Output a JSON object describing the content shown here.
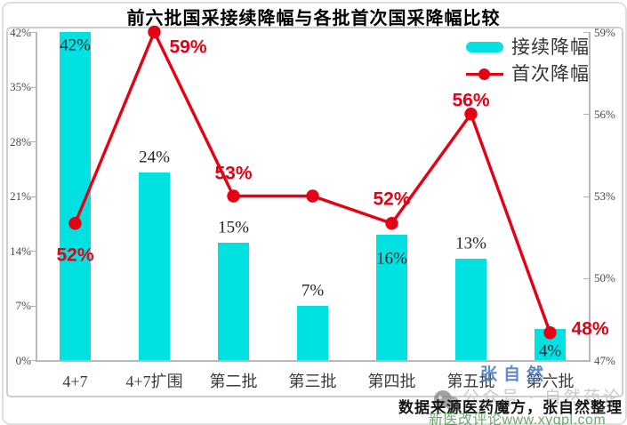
{
  "title": "前六批国采接续降幅与各批首次国采降幅比较",
  "legend": {
    "bar_label": "接续降幅",
    "line_label": "首次降幅"
  },
  "footer": {
    "source": "数据来源医药魔方，张自然整理"
  },
  "watermarks": {
    "blue": "张自然",
    "gray": "公众号 · 自然药论",
    "green": "新医改评论www.xygpl.com"
  },
  "colors": {
    "bar": "#00E2E2",
    "line": "#E60014",
    "axis": "#b9b9b9"
  },
  "chart_data": {
    "type": "bar",
    "subtype": "combo-bar-line-dual-axis",
    "title": "前六批国采接续降幅与各批首次国采降幅比较",
    "categories": [
      "4+7",
      "4+7扩围",
      "第二批",
      "第三批",
      "第四批",
      "第五批",
      "第六批"
    ],
    "series": [
      {
        "name": "接续降幅",
        "type": "bar",
        "axis": "left",
        "values": [
          42,
          24,
          15,
          7,
          16,
          13,
          4
        ],
        "labels": [
          "42%",
          "24%",
          "15%",
          "7%",
          "16%",
          "13%",
          "4%"
        ],
        "color": "#00E2E2"
      },
      {
        "name": "首次降幅",
        "type": "line",
        "axis": "right",
        "values": [
          52,
          59,
          53,
          53,
          52,
          56,
          48
        ],
        "labels": [
          "52%",
          "59%",
          "53%",
          "",
          "52%",
          "56%",
          "48%"
        ],
        "color": "#E60014"
      }
    ],
    "left_axis": {
      "min": 0,
      "max": 42,
      "tick_values": [
        0,
        7,
        14,
        21,
        28,
        35,
        42
      ],
      "tick_labels": [
        "0%",
        "7%",
        "14%",
        "21%",
        "28%",
        "35%",
        "42%"
      ]
    },
    "right_axis": {
      "min": 47,
      "max": 59,
      "tick_values": [
        47,
        50,
        53,
        56,
        59
      ],
      "tick_labels": [
        "47%",
        "50%",
        "53%",
        "56%",
        "59%"
      ]
    },
    "grid": false,
    "legend_position": "top-right"
  }
}
